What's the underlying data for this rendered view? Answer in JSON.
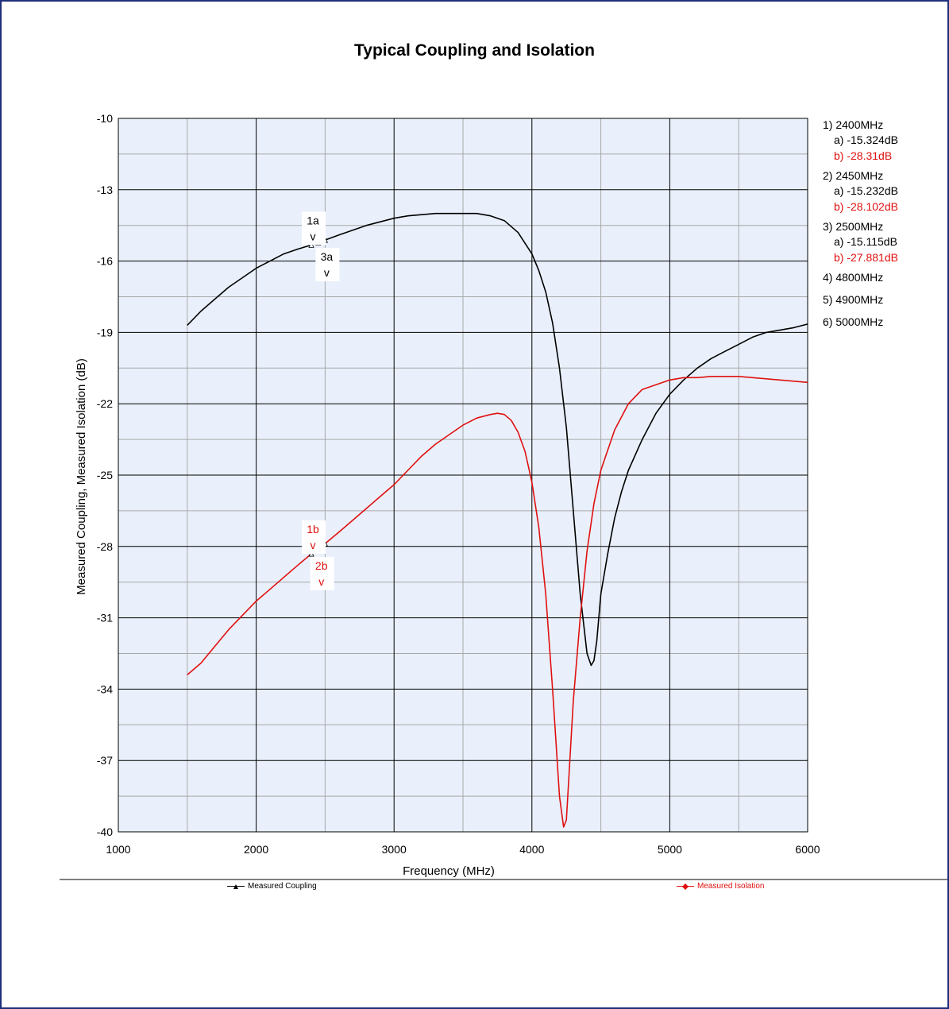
{
  "chart_data": {
    "type": "line",
    "title": "Typical Coupling and Isolation",
    "xlabel": "Frequency (MHz)",
    "ylabel": "Measured Coupling, Measured Isolation (dB)",
    "xlim": [
      1000,
      6000
    ],
    "ylim": [
      -40,
      -10
    ],
    "x_ticks": [
      1000,
      2000,
      3000,
      4000,
      5000,
      6000
    ],
    "y_ticks": [
      -10,
      -13,
      -16,
      -19,
      -22,
      -25,
      -28,
      -31,
      -34,
      -37,
      -40
    ],
    "grid": true,
    "legend": "bottom",
    "series": [
      {
        "name": "Measured Coupling",
        "color": "#000000",
        "x": [
          1500,
          1600,
          1700,
          1800,
          1900,
          2000,
          2100,
          2200,
          2300,
          2400,
          2450,
          2500,
          2600,
          2700,
          2800,
          2900,
          3000,
          3100,
          3200,
          3300,
          3400,
          3500,
          3600,
          3700,
          3800,
          3900,
          4000,
          4050,
          4100,
          4150,
          4200,
          4250,
          4300,
          4350,
          4400,
          4430,
          4450,
          4470,
          4500,
          4550,
          4600,
          4650,
          4700,
          4800,
          4900,
          5000,
          5100,
          5200,
          5300,
          5400,
          5500,
          5600,
          5700,
          5800,
          5900,
          6000
        ],
        "values": [
          -18.7,
          -18.1,
          -17.6,
          -17.1,
          -16.7,
          -16.3,
          -16.0,
          -15.7,
          -15.5,
          -15.324,
          -15.232,
          -15.115,
          -14.9,
          -14.7,
          -14.5,
          -14.35,
          -14.2,
          -14.1,
          -14.05,
          -14.0,
          -14.0,
          -14.0,
          -14.0,
          -14.1,
          -14.3,
          -14.8,
          -15.7,
          -16.4,
          -17.3,
          -18.6,
          -20.5,
          -23.0,
          -26.5,
          -30.0,
          -32.5,
          -33.0,
          -32.8,
          -32.0,
          -30.0,
          -28.3,
          -26.8,
          -25.7,
          -24.8,
          -23.5,
          -22.4,
          -21.6,
          -21.0,
          -20.5,
          -20.1,
          -19.8,
          -19.5,
          -19.2,
          -19.0,
          -18.9,
          -18.8,
          -18.65
        ]
      },
      {
        "name": "Measured Isolation",
        "color": "#e01010",
        "x": [
          1500,
          1600,
          1700,
          1800,
          1900,
          2000,
          2100,
          2200,
          2300,
          2400,
          2450,
          2500,
          2600,
          2700,
          2800,
          2900,
          3000,
          3100,
          3200,
          3300,
          3400,
          3500,
          3600,
          3700,
          3750,
          3800,
          3850,
          3900,
          3950,
          4000,
          4050,
          4100,
          4150,
          4200,
          4230,
          4250,
          4270,
          4300,
          4350,
          4400,
          4450,
          4500,
          4600,
          4700,
          4800,
          4900,
          5000,
          5100,
          5200,
          5300,
          5400,
          5500,
          5600,
          5700,
          5800,
          5900,
          6000
        ],
        "values": [
          -33.4,
          -32.9,
          -32.2,
          -31.5,
          -30.9,
          -30.3,
          -29.8,
          -29.3,
          -28.8,
          -28.31,
          -28.102,
          -27.881,
          -27.4,
          -26.9,
          -26.4,
          -25.9,
          -25.4,
          -24.8,
          -24.2,
          -23.7,
          -23.3,
          -22.9,
          -22.6,
          -22.45,
          -22.4,
          -22.45,
          -22.7,
          -23.2,
          -24.0,
          -25.3,
          -27.2,
          -30.0,
          -34.0,
          -38.5,
          -39.8,
          -39.5,
          -37.5,
          -34.5,
          -31.0,
          -28.2,
          -26.2,
          -24.8,
          -23.1,
          -22.0,
          -21.4,
          -21.2,
          -21.0,
          -20.9,
          -20.9,
          -20.85,
          -20.85,
          -20.85,
          -20.9,
          -20.95,
          -21.0,
          -21.05,
          -21.1
        ]
      }
    ],
    "annotations": [
      {
        "label": "1a",
        "arrow": "v",
        "color": "#000000"
      },
      {
        "label": "3a",
        "arrow": "v",
        "color": "#000000"
      },
      {
        "label": "1b",
        "arrow": "v",
        "color": "#e01010"
      },
      {
        "label": "2b",
        "arrow": "v",
        "color": "#e01010"
      }
    ],
    "markers": [
      {
        "freq": "1) 2400MHz",
        "a": "a) -15.324dB",
        "b": "b) -28.31dB"
      },
      {
        "freq": "2) 2450MHz",
        "a": "a) -15.232dB",
        "b": "b) -28.102dB"
      },
      {
        "freq": "3) 2500MHz",
        "a": "a) -15.115dB",
        "b": "b) -27.881dB"
      },
      {
        "freq": "4) 4800MHz"
      },
      {
        "freq": "5) 4900MHz"
      },
      {
        "freq": "6) 5000MHz"
      }
    ]
  },
  "colors": {
    "plot_background": "#e9f0fb",
    "frame_border": "#1f2f7a",
    "major_grid": "#000000",
    "minor_grid": "#a8a8a8",
    "coupling": "#000000",
    "isolation": "#e01010"
  }
}
